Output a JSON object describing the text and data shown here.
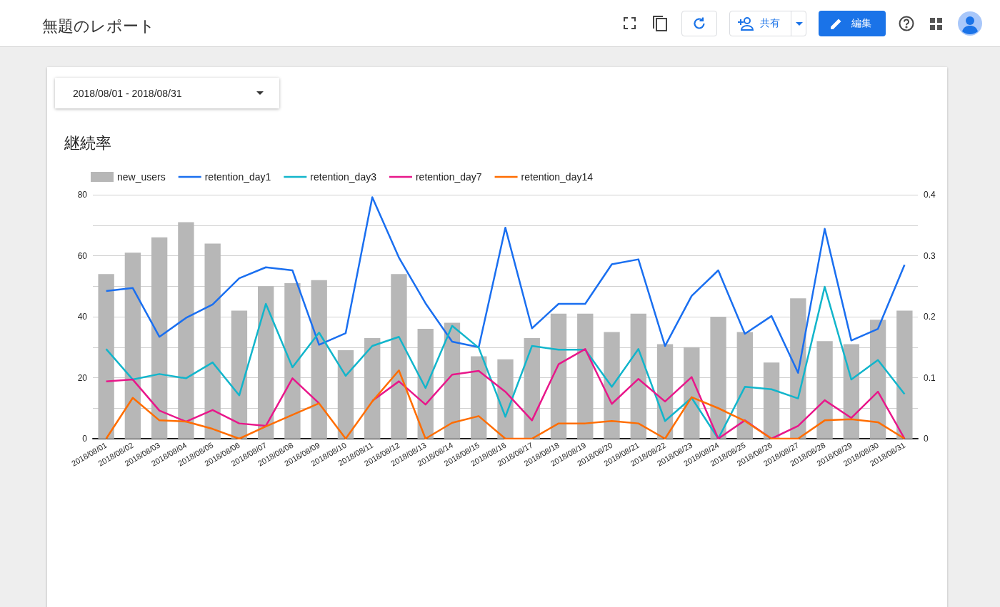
{
  "chart_data": {
    "type": "bar",
    "title": "継続率",
    "annotations": [
      "無題のレポート",
      "2018/08/01 - 2018/08/31",
      "共有",
      "編集"
    ],
    "categories": [
      "2018/08/01",
      "2018/08/02",
      "2018/08/03",
      "2018/08/04",
      "2018/08/05",
      "2018/08/06",
      "2018/08/07",
      "2018/08/08",
      "2018/08/09",
      "2018/08/10",
      "2018/08/11",
      "2018/08/12",
      "2018/08/13",
      "2018/08/14",
      "2018/08/15",
      "2018/08/16",
      "2018/08/17",
      "2018/08/18",
      "2018/08/19",
      "2018/08/20",
      "2018/08/21",
      "2018/08/22",
      "2018/08/23",
      "2018/08/24",
      "2018/08/25",
      "2018/08/26",
      "2018/08/27",
      "2018/08/28",
      "2018/08/29",
      "2018/08/30",
      "2018/08/31"
    ],
    "series": [
      {
        "name": "new_users",
        "color": "#b7b7b7",
        "values": [
          54,
          61,
          66,
          71,
          64,
          42,
          50,
          51,
          52,
          29,
          33,
          54,
          36,
          38,
          27,
          26,
          33,
          41,
          41,
          35,
          41,
          31,
          30,
          40,
          35,
          25,
          46,
          32,
          31,
          39,
          42
        ]
      },
      {
        "name": "retention_day1",
        "type": "line",
        "axis": "y2",
        "color": "#1a6ff0",
        "values": [
          0.242,
          0.247,
          0.167,
          0.198,
          0.22,
          0.263,
          0.281,
          0.276,
          0.154,
          0.173,
          0.396,
          0.297,
          0.222,
          0.159,
          0.15,
          0.346,
          0.181,
          0.221,
          0.221,
          0.286,
          0.294,
          0.152,
          0.234,
          0.276,
          0.172,
          0.201,
          0.108,
          0.344,
          0.161,
          0.18,
          0.285
        ]
      },
      {
        "name": "retention_day3",
        "type": "line",
        "axis": "y2",
        "color": "#12b5cb",
        "values": [
          0.147,
          0.097,
          0.106,
          0.099,
          0.125,
          0.071,
          0.221,
          0.117,
          0.174,
          0.103,
          0.152,
          0.167,
          0.083,
          0.185,
          0.149,
          0.036,
          0.152,
          0.146,
          0.146,
          0.085,
          0.147,
          0.029,
          0.067,
          0,
          0.085,
          0.081,
          0.066,
          0.249,
          0.097,
          0.129,
          0.073
        ]
      },
      {
        "name": "retention_day7",
        "type": "line",
        "axis": "y2",
        "color": "#e8178a",
        "values": [
          0.094,
          0.097,
          0.046,
          0.028,
          0.047,
          0.025,
          0.021,
          0.099,
          0.058,
          null,
          0.062,
          0.094,
          0.056,
          0.105,
          0.111,
          0.077,
          0.03,
          0.122,
          0.147,
          0.057,
          0.098,
          0.061,
          0.101,
          0,
          0.03,
          0,
          0.021,
          0.063,
          0.034,
          0.077,
          0
        ]
      },
      {
        "name": "retention_day14",
        "type": "line",
        "axis": "y2",
        "color": "#ff6d00",
        "values": [
          0,
          0.067,
          0.03,
          0.028,
          0.016,
          0,
          0.02,
          0.039,
          0.058,
          0,
          0.061,
          0.112,
          0,
          0.026,
          0.037,
          0,
          0,
          0.025,
          0.025,
          0.029,
          0.025,
          0,
          0.068,
          0.05,
          0.029,
          0,
          0,
          0.03,
          0.032,
          0.027,
          0
        ]
      }
    ],
    "ylim": [
      0,
      80
    ],
    "yticks": [
      0,
      {
        "value": 10,
        "label": null
      },
      20,
      {
        "value": 30,
        "label": null
      },
      40,
      {
        "value": 50,
        "label": null
      },
      60,
      {
        "value": 70,
        "label": null
      },
      80
    ],
    "y2lim": [
      0,
      0.4
    ],
    "y2ticks": [
      0,
      0.1,
      0.2,
      0.3,
      0.4
    ],
    "grid": "y",
    "legend": "top left",
    "marker": "none",
    "line_style": "solid"
  }
}
